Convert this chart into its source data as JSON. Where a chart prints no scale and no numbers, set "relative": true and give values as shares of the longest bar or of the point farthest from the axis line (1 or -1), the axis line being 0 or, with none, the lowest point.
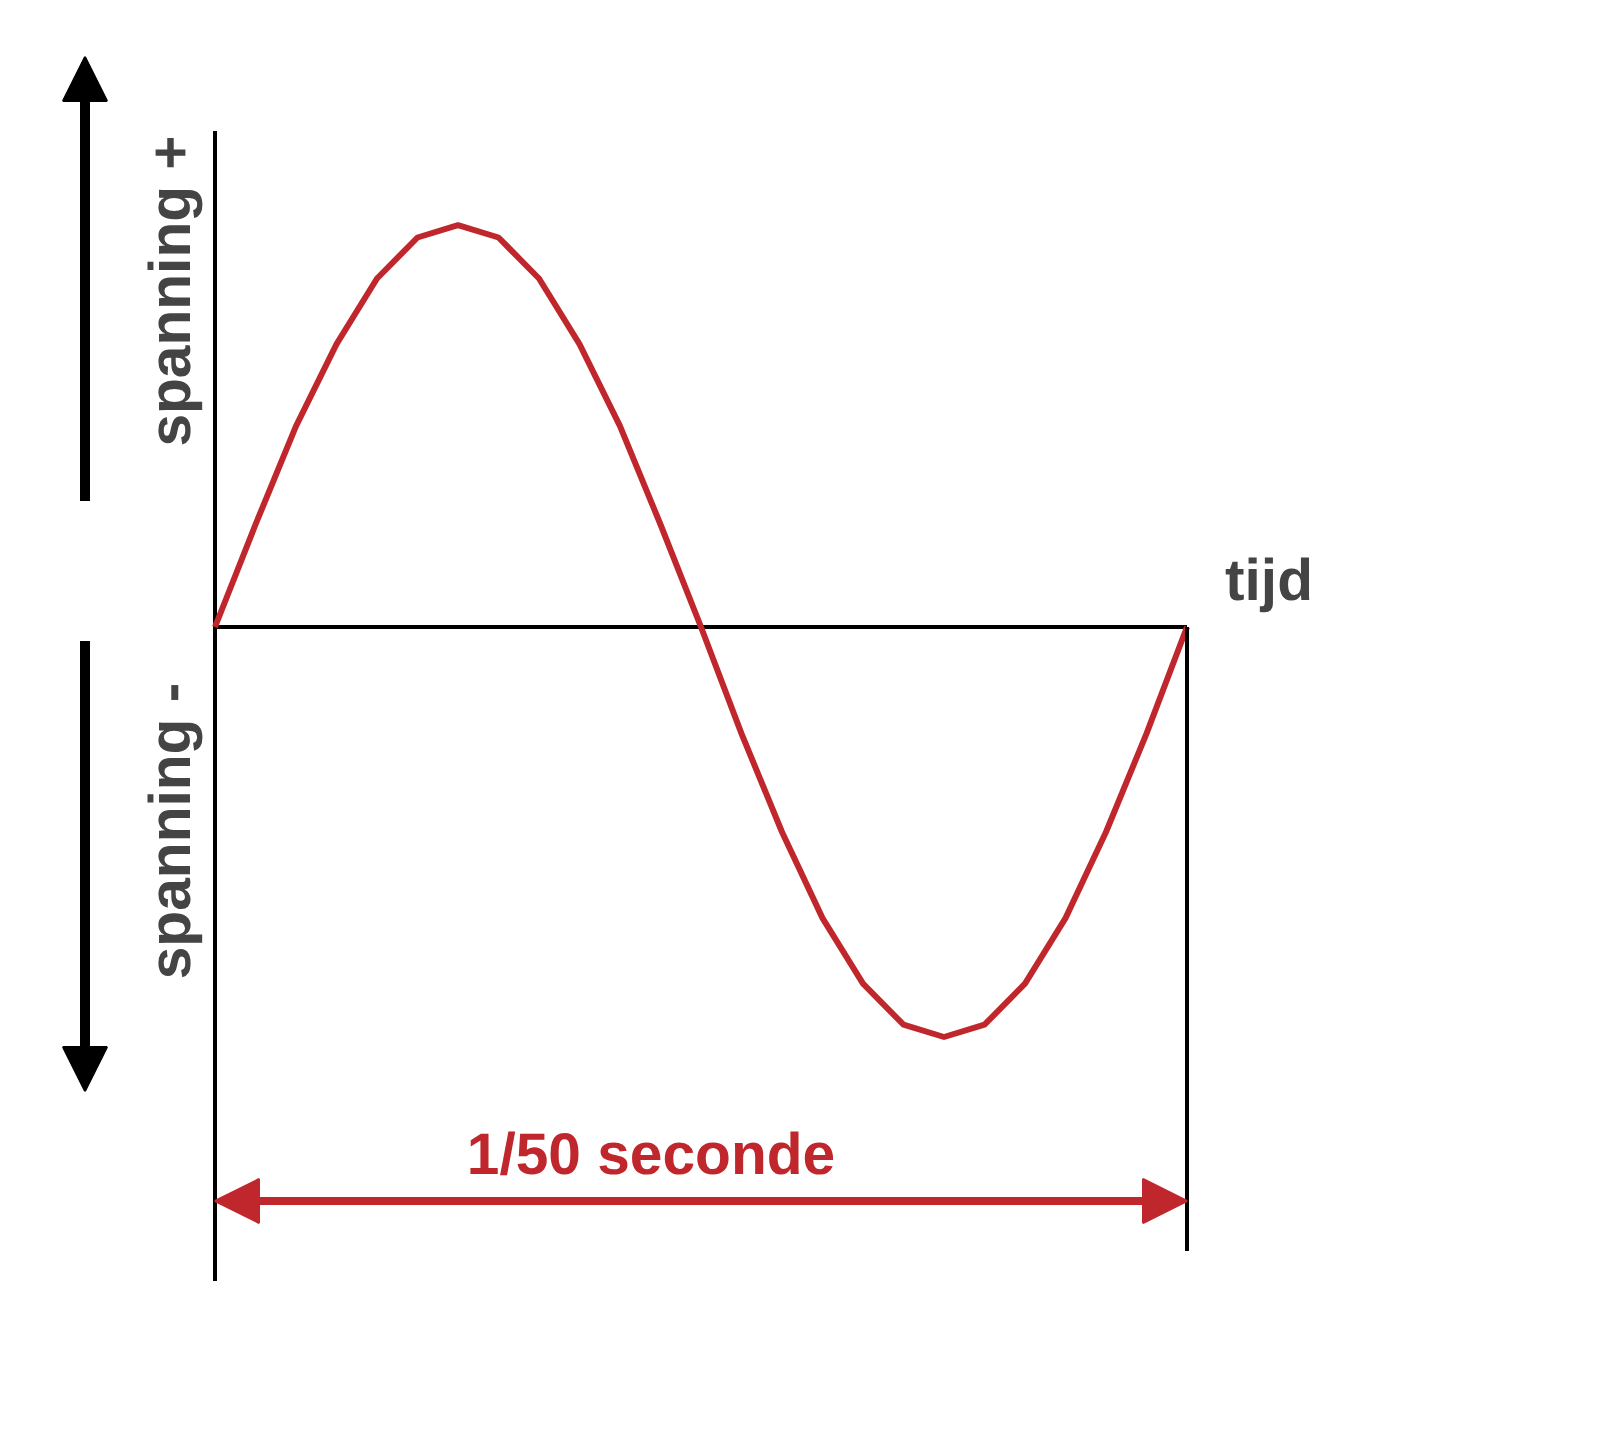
{
  "chart_data": {
    "type": "line",
    "relative": true,
    "color": "#c0272d",
    "xlabel": "tijd",
    "ylabel": "spanning +",
    "annotations": [
      "spanning -",
      "1/50 seconde"
    ],
    "categories": [
      null,
      null,
      null,
      null,
      null,
      null,
      null,
      null,
      null,
      null,
      null,
      null,
      null,
      null,
      null,
      null,
      null,
      null,
      null,
      null,
      null,
      null,
      null,
      null,
      null
    ],
    "values": [
      0,
      0.25,
      0.49,
      0.69,
      0.85,
      0.95,
      0.98,
      0.95,
      0.85,
      0.69,
      0.49,
      0.25,
      0,
      -0.26,
      -0.5,
      -0.71,
      -0.87,
      -0.97,
      -1,
      -0.97,
      -0.87,
      -0.71,
      -0.5,
      -0.26,
      0
    ]
  }
}
